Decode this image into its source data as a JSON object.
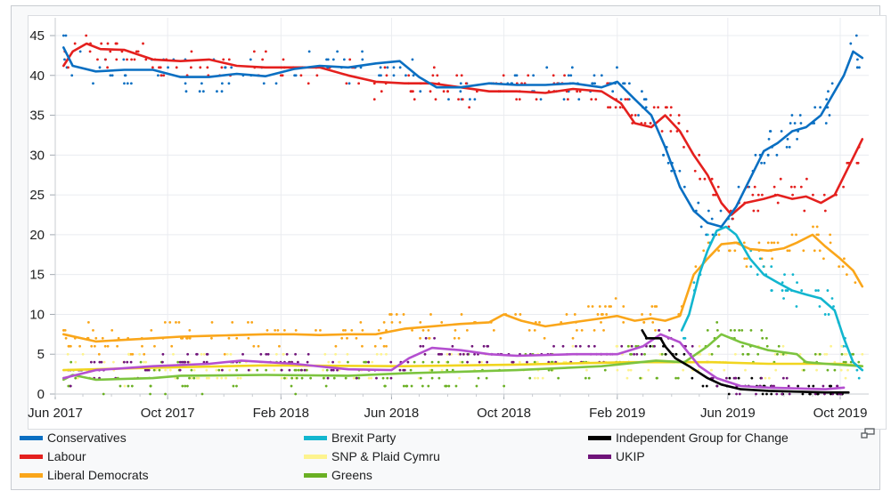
{
  "chart_data": {
    "type": "line",
    "title": "",
    "xlabel": "",
    "ylabel": "",
    "ylim": [
      0,
      47
    ],
    "xlim": [
      "2017-06-08",
      "2019-11-01"
    ],
    "yticks": [
      0,
      5,
      10,
      15,
      20,
      25,
      30,
      35,
      40,
      45
    ],
    "xticks": [
      {
        "date": "2017-06-01",
        "label": "Jun 2017"
      },
      {
        "date": "2017-10-01",
        "label": "Oct 2017"
      },
      {
        "date": "2018-02-01",
        "label": "Feb 2018"
      },
      {
        "date": "2018-06-01",
        "label": "Jun 2018"
      },
      {
        "date": "2018-10-01",
        "label": "Oct 2018"
      },
      {
        "date": "2019-02-01",
        "label": "Feb 2019"
      },
      {
        "date": "2019-06-01",
        "label": "Jun 2019"
      },
      {
        "date": "2019-10-01",
        "label": "Oct 2019"
      }
    ],
    "grid": true,
    "legend_position": "bottom",
    "series": [
      {
        "name": "Conservatives",
        "color": "#0a6fc2",
        "x": [
          "2017-06-10",
          "2017-06-20",
          "2017-07-15",
          "2017-08-15",
          "2017-09-15",
          "2017-10-15",
          "2017-11-15",
          "2017-12-15",
          "2018-01-15",
          "2018-02-15",
          "2018-03-15",
          "2018-04-15",
          "2018-05-15",
          "2018-06-10",
          "2018-07-01",
          "2018-07-20",
          "2018-08-15",
          "2018-09-15",
          "2018-10-15",
          "2018-11-15",
          "2018-12-15",
          "2019-01-15",
          "2019-02-01",
          "2019-02-20",
          "2019-03-10",
          "2019-03-25",
          "2019-04-10",
          "2019-04-25",
          "2019-05-10",
          "2019-05-25",
          "2019-06-10",
          "2019-06-25",
          "2019-07-10",
          "2019-07-25",
          "2019-08-10",
          "2019-08-25",
          "2019-09-10",
          "2019-09-25",
          "2019-10-05",
          "2019-10-15",
          "2019-10-25"
        ],
        "y": [
          43.5,
          41.2,
          40.5,
          40.7,
          40.7,
          39.8,
          39.8,
          40.2,
          39.9,
          40.8,
          41.2,
          41.0,
          41.5,
          41.8,
          39.8,
          38.5,
          38.5,
          39.0,
          38.8,
          38.8,
          39.0,
          38.5,
          39.2,
          37.0,
          35.0,
          31.0,
          26.0,
          23.0,
          21.5,
          21.0,
          23.5,
          27.0,
          30.5,
          31.5,
          33.0,
          33.5,
          35.0,
          38.0,
          40.0,
          43.0,
          42.2
        ]
      },
      {
        "name": "Labour",
        "color": "#e4201e",
        "x": [
          "2017-06-10",
          "2017-06-20",
          "2017-07-05",
          "2017-07-20",
          "2017-08-15",
          "2017-09-15",
          "2017-10-15",
          "2017-11-15",
          "2017-12-15",
          "2018-01-15",
          "2018-02-15",
          "2018-03-15",
          "2018-04-15",
          "2018-05-15",
          "2018-06-15",
          "2018-07-15",
          "2018-08-15",
          "2018-09-15",
          "2018-10-15",
          "2018-11-15",
          "2018-12-15",
          "2019-01-15",
          "2019-02-05",
          "2019-02-20",
          "2019-03-10",
          "2019-03-25",
          "2019-04-10",
          "2019-04-25",
          "2019-05-10",
          "2019-05-25",
          "2019-06-05",
          "2019-06-20",
          "2019-07-10",
          "2019-07-25",
          "2019-08-10",
          "2019-08-25",
          "2019-09-10",
          "2019-09-25",
          "2019-10-10",
          "2019-10-25"
        ],
        "y": [
          41.2,
          43.0,
          44.0,
          43.3,
          43.2,
          42.0,
          41.8,
          42.0,
          41.2,
          41.0,
          41.0,
          41.0,
          40.0,
          39.2,
          39.0,
          39.0,
          38.5,
          38.0,
          38.0,
          37.8,
          38.3,
          38.0,
          36.5,
          34.0,
          33.5,
          35.0,
          33.0,
          30.0,
          27.5,
          24.0,
          22.5,
          24.0,
          24.5,
          25.0,
          24.5,
          24.8,
          24.0,
          25.0,
          28.5,
          32.0
        ]
      },
      {
        "name": "Liberal Democrats",
        "color": "#faa61a",
        "x": [
          "2017-06-10",
          "2017-07-15",
          "2017-08-15",
          "2017-09-15",
          "2017-10-15",
          "2017-11-15",
          "2017-12-15",
          "2018-01-15",
          "2018-02-15",
          "2018-03-15",
          "2018-04-15",
          "2018-05-15",
          "2018-06-15",
          "2018-07-15",
          "2018-08-15",
          "2018-09-15",
          "2018-10-01",
          "2018-10-20",
          "2018-11-15",
          "2018-12-15",
          "2019-01-15",
          "2019-02-01",
          "2019-02-20",
          "2019-03-10",
          "2019-03-25",
          "2019-04-10",
          "2019-04-25",
          "2019-05-10",
          "2019-05-25",
          "2019-06-10",
          "2019-06-25",
          "2019-07-15",
          "2019-08-01",
          "2019-08-15",
          "2019-09-01",
          "2019-09-15",
          "2019-10-01",
          "2019-10-15",
          "2019-10-25"
        ],
        "y": [
          7.5,
          6.6,
          6.8,
          7.0,
          7.2,
          7.3,
          7.4,
          7.5,
          7.5,
          7.4,
          7.5,
          7.5,
          8.2,
          8.5,
          8.8,
          9.0,
          10.0,
          9.2,
          8.5,
          9.0,
          9.5,
          9.8,
          9.2,
          9.5,
          9.2,
          9.8,
          15.0,
          17.0,
          18.8,
          19.0,
          18.2,
          18.0,
          18.3,
          19.0,
          20.0,
          18.5,
          17.0,
          15.5,
          13.5
        ]
      },
      {
        "name": "Brexit Party",
        "color": "#12b6cf",
        "x": [
          "2019-04-12",
          "2019-04-20",
          "2019-05-01",
          "2019-05-10",
          "2019-05-20",
          "2019-05-30",
          "2019-06-10",
          "2019-06-25",
          "2019-07-10",
          "2019-07-25",
          "2019-08-10",
          "2019-08-25",
          "2019-09-10",
          "2019-09-25",
          "2019-10-05",
          "2019-10-15",
          "2019-10-25"
        ],
        "y": [
          8.0,
          10.0,
          15.0,
          18.0,
          20.5,
          21.0,
          20.0,
          17.0,
          15.0,
          14.0,
          13.0,
          12.5,
          12.0,
          10.5,
          7.0,
          4.0,
          3.0
        ]
      },
      {
        "name": "SNP & Plaid Cymru",
        "color": "#fdf38e",
        "x": [
          "2017-06-10",
          "2017-09-15",
          "2018-01-15",
          "2018-06-15",
          "2018-10-15",
          "2019-02-15",
          "2019-05-15",
          "2019-07-15",
          "2019-10-01",
          "2019-10-25"
        ],
        "y": [
          3.0,
          3.3,
          3.6,
          3.5,
          3.7,
          4.0,
          4.0,
          3.8,
          3.8,
          3.5
        ]
      },
      {
        "name": "Greens",
        "color": "#6ab023",
        "x": [
          "2017-06-10",
          "2017-06-20",
          "2017-07-15",
          "2017-09-15",
          "2017-10-15",
          "2018-01-15",
          "2018-04-15",
          "2018-06-15",
          "2018-10-15",
          "2019-01-15",
          "2019-03-15",
          "2019-04-15",
          "2019-05-10",
          "2019-05-25",
          "2019-06-15",
          "2019-07-15",
          "2019-08-15",
          "2019-08-25",
          "2019-09-15",
          "2019-10-25"
        ],
        "y": [
          1.8,
          2.4,
          1.8,
          2.0,
          2.3,
          2.4,
          2.3,
          2.6,
          3.0,
          3.5,
          4.2,
          4.0,
          6.0,
          7.5,
          6.5,
          5.5,
          5.0,
          4.0,
          3.8,
          3.5
        ]
      },
      {
        "name": "Independent Group for Change",
        "color": "#000000",
        "x": [
          "2019-02-28",
          "2019-03-05",
          "2019-03-20",
          "2019-03-25",
          "2019-04-05",
          "2019-04-20",
          "2019-05-10",
          "2019-05-25",
          "2019-06-15",
          "2019-07-15",
          "2019-08-15",
          "2019-09-15",
          "2019-10-10"
        ],
        "y": [
          8.0,
          7.0,
          7.0,
          6.0,
          4.5,
          3.5,
          2.0,
          1.2,
          0.6,
          0.4,
          0.3,
          0.2,
          0.2
        ]
      },
      {
        "name": "UKIP",
        "color": "#70147a",
        "x": [
          "2017-06-10",
          "2017-07-15",
          "2017-09-15",
          "2017-11-15",
          "2017-12-20",
          "2018-02-15",
          "2018-04-15",
          "2018-06-01",
          "2018-06-20",
          "2018-07-15",
          "2018-08-15",
          "2018-09-15",
          "2018-10-15",
          "2018-12-15",
          "2019-02-01",
          "2019-03-01",
          "2019-03-20",
          "2019-04-10",
          "2019-05-01",
          "2019-05-20",
          "2019-06-15",
          "2019-07-15",
          "2019-08-15",
          "2019-09-15",
          "2019-10-05"
        ],
        "y": [
          2.0,
          3.0,
          3.5,
          3.8,
          4.2,
          3.8,
          3.1,
          3.0,
          4.5,
          5.8,
          5.5,
          5.0,
          4.8,
          5.0,
          5.0,
          6.0,
          7.5,
          6.5,
          3.5,
          2.0,
          1.0,
          0.8,
          0.7,
          0.6,
          0.8
        ]
      }
    ]
  },
  "legend": {
    "items": [
      {
        "label": "Conservatives",
        "color": "#0a6fc2"
      },
      {
        "label": "Labour",
        "color": "#e4201e"
      },
      {
        "label": "Liberal Democrats",
        "color": "#faa61a"
      },
      {
        "label": "Brexit Party",
        "color": "#12b6cf"
      },
      {
        "label": "SNP & Plaid Cymru",
        "color": "#fdf38e"
      },
      {
        "label": "Greens",
        "color": "#6ab023"
      },
      {
        "label": "Independent Group for Change",
        "color": "#000000"
      },
      {
        "label": "UKIP",
        "color": "#70147a"
      }
    ]
  }
}
